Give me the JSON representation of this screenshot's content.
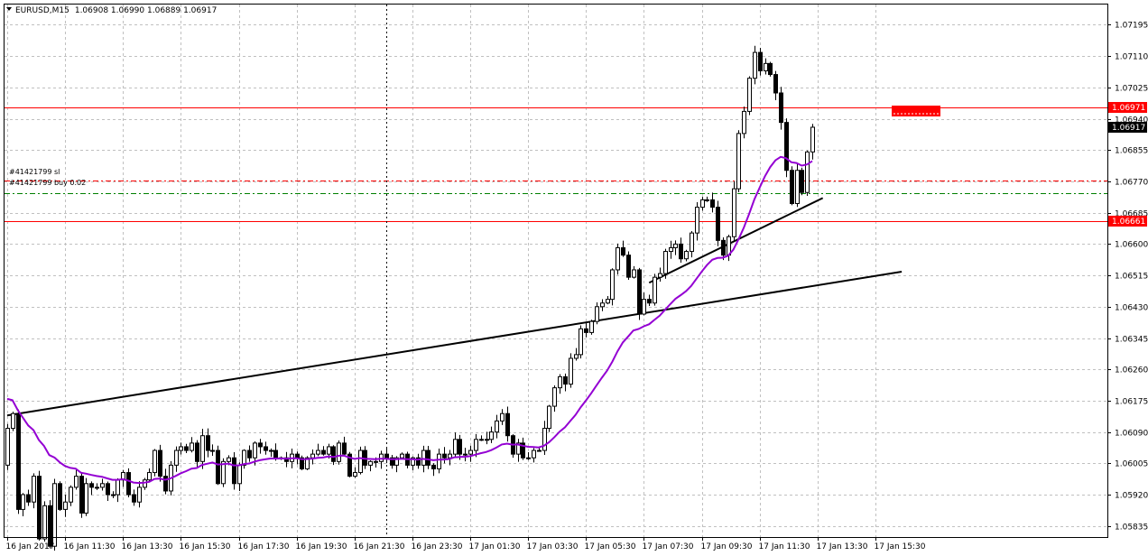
{
  "header": {
    "symbol": "EURUSD,M15",
    "ohlc": "1.06908 1.06990 1.06889 1.06917"
  },
  "colors": {
    "background": "#ffffff",
    "grid": "#c0c0c0",
    "bull": "#ffffff",
    "bear": "#000000",
    "wick": "#000000",
    "ma": "#9400d3",
    "trendline": "#000000",
    "level": "#ff0000",
    "sl_line": "#ff0000",
    "buy_line": "#008000",
    "price_tag_bg": "#000000"
  },
  "orders": {
    "sl_label": "#41421799 sl",
    "buy_label": "#41421799 buy 0.02",
    "sl_price": 1.06772,
    "buy_price": 1.06738
  },
  "levels": [
    {
      "price": 1.06971,
      "label": "1.06971"
    },
    {
      "price": 1.06661,
      "label": "1.06661"
    }
  ],
  "current_price": {
    "price": 1.06917,
    "label": "1.06917"
  },
  "chart_data": {
    "type": "candlestick",
    "y_ticks": [
      "1.07195",
      "1.07110",
      "1.07025",
      "1.06940",
      "1.06855",
      "1.06770",
      "1.06685",
      "1.06600",
      "1.06515",
      "1.06430",
      "1.06345",
      "1.06260",
      "1.06175",
      "1.06090",
      "1.06005",
      "1.05920",
      "1.05835"
    ],
    "x_ticks": [
      "16 Jan 2017",
      "16 Jan 11:30",
      "16 Jan 13:30",
      "16 Jan 15:30",
      "16 Jan 17:30",
      "16 Jan 19:30",
      "16 Jan 21:30",
      "16 Jan 23:30",
      "17 Jan 01:30",
      "17 Jan 03:30",
      "17 Jan 05:30",
      "17 Jan 07:30",
      "17 Jan 09:30",
      "17 Jan 11:30",
      "17 Jan 13:30",
      "17 Jan 15:30"
    ],
    "ylim": [
      1.05805,
      1.0725
    ],
    "closes": [
      1.061,
      1.0614,
      1.0588,
      1.0592,
      1.059,
      1.0597,
      1.058,
      1.0589,
      1.0578,
      1.0595,
      1.0588,
      1.059,
      1.0594,
      1.0597,
      1.0587,
      1.0595,
      1.0594,
      1.0594,
      1.0595,
      1.0592,
      1.0592,
      1.0596,
      1.0598,
      1.0592,
      1.059,
      1.0594,
      1.0596,
      1.0598,
      1.0604,
      1.0597,
      1.0593,
      1.06,
      1.0604,
      1.0605,
      1.0604,
      1.0606,
      1.0601,
      1.0608,
      1.0604,
      1.0604,
      1.0595,
      1.0601,
      1.0602,
      1.0595,
      1.06,
      1.0604,
      1.0602,
      1.0606,
      1.0605,
      1.0604,
      1.0604,
      1.0602,
      1.0602,
      1.0601,
      1.0603,
      1.0602,
      1.0599,
      1.0602,
      1.0603,
      1.0604,
      1.0603,
      1.0605,
      1.0601,
      1.0606,
      1.0603,
      1.0597,
      1.0598,
      1.0604,
      1.06,
      1.0601,
      1.0601,
      1.0603,
      1.0602,
      1.06,
      1.0602,
      1.0603,
      1.06,
      1.0602,
      1.06,
      1.0604,
      1.06,
      1.0599,
      1.0603,
      1.0602,
      1.0603,
      1.0607,
      1.0603,
      1.0603,
      1.0604,
      1.0607,
      1.0607,
      1.0607,
      1.0609,
      1.0612,
      1.0614,
      1.0608,
      1.0603,
      1.0606,
      1.0602,
      1.0602,
      1.0604,
      1.0604,
      1.061,
      1.0616,
      1.0621,
      1.0624,
      1.0622,
      1.0629,
      1.063,
      1.0637,
      1.0636,
      1.0639,
      1.0643,
      1.0644,
      1.0645,
      1.0653,
      1.0659,
      1.0657,
      1.0651,
      1.0653,
      1.0641,
      1.0645,
      1.0644,
      1.0651,
      1.0652,
      1.0658,
      1.0659,
      1.066,
      1.0656,
      1.0658,
      1.0663,
      1.067,
      1.0672,
      1.0672,
      1.067,
      1.0661,
      1.0657,
      1.0662,
      1.0675,
      1.069,
      1.0696,
      1.0705,
      1.0712,
      1.0707,
      1.0709,
      1.0706,
      1.0701,
      1.0693,
      1.068,
      1.0671,
      1.068,
      1.0674,
      1.0685,
      1.06917
    ],
    "ma_period": 21,
    "trendlines": [
      {
        "from_bar": 0,
        "from_price": 1.06135,
        "to_bar": 170,
        "to_price": 1.06525
      },
      {
        "from_bar": 122,
        "from_price": 1.06495,
        "to_bar": 155,
        "to_price": 1.06725
      }
    ],
    "crosshair_bar": 72
  }
}
